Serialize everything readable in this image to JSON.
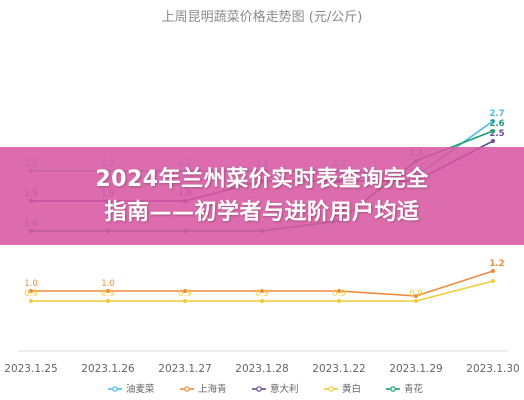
{
  "banner": {
    "line1": "2024年兰州菜价实时表查询完全",
    "line2": "指南——初学者与进阶用户均适"
  },
  "chart_data": {
    "type": "line",
    "title": "上周昆明蔬菜价格走势图 (元/公斤)",
    "categories": [
      "2023.1.25",
      "2023.1.26",
      "2023.1.27",
      "2023.1.28",
      "2023.1.22",
      "2023.1.29",
      "2023.1.30"
    ],
    "series": [
      {
        "name": "油麦菜",
        "color": "#4bbbe8",
        "values": [
          2.2,
          2.2,
          2.2,
          2.2,
          2.2,
          2.15,
          2.7
        ],
        "labels": [
          "2.2",
          "2.2",
          "2.2",
          "2.2",
          "2.2",
          "2.2",
          "2.7"
        ]
      },
      {
        "name": "上海青",
        "color": "#f08a3c",
        "values": [
          1.0,
          1.0,
          1.0,
          1.0,
          1.0,
          0.95,
          1.2
        ],
        "labels": [
          "1.0",
          "1.0",
          "",
          "",
          "",
          "",
          "1.2"
        ]
      },
      {
        "name": "意大利",
        "color": "#6a4c93",
        "values": [
          1.9,
          1.9,
          1.9,
          2.1,
          2.1,
          2.1,
          2.5
        ],
        "labels": [
          "1.9",
          "1.9",
          "1.9",
          "2.1",
          "2.1",
          "2.1",
          "2.5"
        ]
      },
      {
        "name": "黄白",
        "color": "#f0cc3a",
        "values": [
          0.9,
          0.9,
          0.9,
          0.9,
          0.9,
          0.9,
          1.1
        ],
        "labels": [
          "0.9",
          "0.9",
          "0.9",
          "0.9",
          "0.9",
          "0.9",
          ""
        ]
      },
      {
        "name": "青花",
        "color": "#1f9e6e",
        "values": [
          1.6,
          1.6,
          1.6,
          1.6,
          1.7,
          2.3,
          2.6
        ],
        "labels": [
          "1.6",
          "",
          "",
          "",
          "1.7",
          "2.3",
          "2.6"
        ]
      }
    ],
    "ylim": [
      0.4,
      3.0
    ],
    "grid": false,
    "legend_position": "bottom"
  }
}
